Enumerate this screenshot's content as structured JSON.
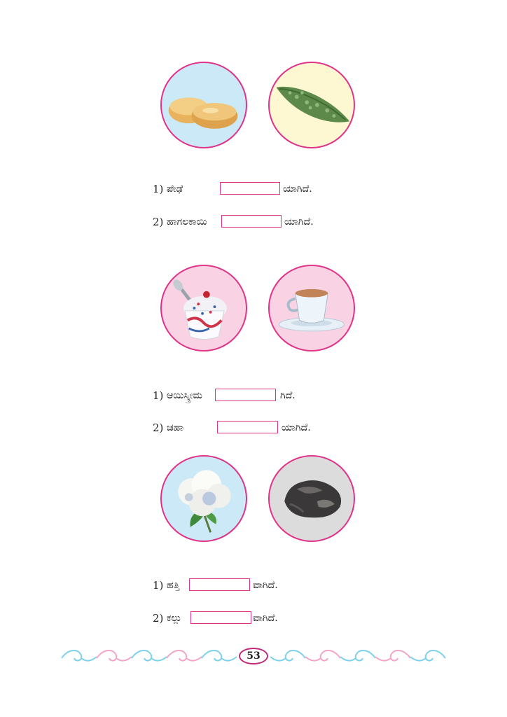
{
  "groups": [
    {
      "images": [
        {
          "icon": "peda-sweets-image",
          "bg": "#cbe9f7"
        },
        {
          "icon": "bitter-gourd-image",
          "bg": "#fdf7d2"
        }
      ],
      "rows": [
        {
          "num": "1)",
          "word": "ಪೇಢೆ",
          "suffix": "ಯಾಗಿದೆ."
        },
        {
          "num": "2)",
          "word": "ಹಾಗಲಕಾಯಿ",
          "suffix": "ಯಾಗಿದೆ."
        }
      ]
    },
    {
      "images": [
        {
          "icon": "ice-cream-cup-image",
          "bg": "#f9d3e4"
        },
        {
          "icon": "tea-cup-image",
          "bg": "#f9d3e4"
        }
      ],
      "rows": [
        {
          "num": "1)",
          "word": "ಆಯಿಸ್ಕ್ರೀಮ",
          "suffix": "ಗಿದೆ."
        },
        {
          "num": "2)",
          "word": "ಚಹಾ",
          "suffix": "ಯಾಗಿದೆ."
        }
      ]
    },
    {
      "images": [
        {
          "icon": "cotton-boll-image",
          "bg": "#cbe9f7"
        },
        {
          "icon": "stone-image",
          "bg": "#dcdcdc"
        }
      ],
      "rows": [
        {
          "num": "1)",
          "word": "ಹತ್ತಿ",
          "suffix": "ವಾಗಿದೆ."
        },
        {
          "num": "2)",
          "word": "ಕಲ್ಲು",
          "suffix": "ವಾಗಿದೆ."
        }
      ]
    }
  ],
  "footer": {
    "page_number": "53",
    "ornament_colors": [
      "#7fd0ea",
      "#f4a6c8"
    ]
  }
}
